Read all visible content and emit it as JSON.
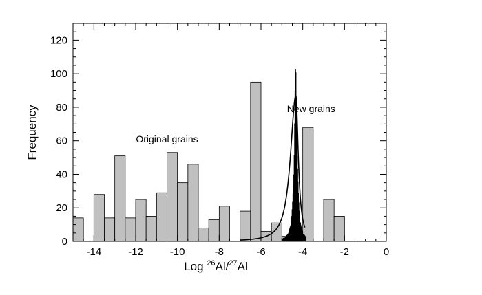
{
  "chart_data": {
    "type": "histogram",
    "xlim": [
      -15,
      0
    ],
    "ylim": [
      0,
      130
    ],
    "x_ticks": [
      -14,
      -12,
      -10,
      -8,
      -6,
      -4,
      -2,
      0
    ],
    "y_ticks": [
      0,
      20,
      40,
      60,
      80,
      100,
      120
    ],
    "xlabel": {
      "prefix": "Log ",
      "sup1": "26",
      "mid": "Al/",
      "sup2": "27",
      "suffix": "Al"
    },
    "ylabel": "Frequency",
    "grid": false,
    "series": [
      {
        "name": "Original grains",
        "kind": "step-histogram",
        "fill": "#c0c0c0",
        "bin_width": 0.5,
        "bins": [
          {
            "x0": -15.0,
            "value": 14
          },
          {
            "x0": -14.5,
            "value": 0
          },
          {
            "x0": -14.0,
            "value": 28
          },
          {
            "x0": -13.5,
            "value": 14
          },
          {
            "x0": -13.0,
            "value": 51
          },
          {
            "x0": -12.5,
            "value": 14
          },
          {
            "x0": -12.0,
            "value": 25
          },
          {
            "x0": -11.5,
            "value": 15
          },
          {
            "x0": -11.0,
            "value": 29
          },
          {
            "x0": -10.5,
            "value": 53
          },
          {
            "x0": -10.0,
            "value": 35
          },
          {
            "x0": -9.5,
            "value": 46
          },
          {
            "x0": -9.0,
            "value": 8
          },
          {
            "x0": -8.5,
            "value": 13
          },
          {
            "x0": -8.0,
            "value": 21
          },
          {
            "x0": -7.5,
            "value": 0
          },
          {
            "x0": -7.0,
            "value": 18
          },
          {
            "x0": -6.5,
            "value": 95
          },
          {
            "x0": -6.0,
            "value": 6
          },
          {
            "x0": -5.5,
            "value": 11
          },
          {
            "x0": -5.0,
            "value": 3
          },
          {
            "x0": -4.5,
            "value": 0
          },
          {
            "x0": -4.0,
            "value": 68
          },
          {
            "x0": -3.5,
            "value": 0
          },
          {
            "x0": -3.0,
            "value": 25
          },
          {
            "x0": -2.5,
            "value": 15
          }
        ]
      },
      {
        "name": "New grains",
        "kind": "fine-histogram",
        "fill": "#000000",
        "bin_width": 0.02,
        "center": -4.35,
        "peak": 104,
        "sigma": 0.12
      },
      {
        "name": "fit",
        "kind": "line",
        "stroke": "#000000",
        "center": -4.33,
        "peak": 87,
        "x_start": -7,
        "x_end": -3.9,
        "tail_left": 0.34,
        "tail_right": 0.14
      }
    ],
    "annotations": [
      {
        "text": "Original grains",
        "x": -10.5,
        "y": 59
      },
      {
        "text": "New grains",
        "x": -3.6,
        "y": 77
      }
    ]
  }
}
